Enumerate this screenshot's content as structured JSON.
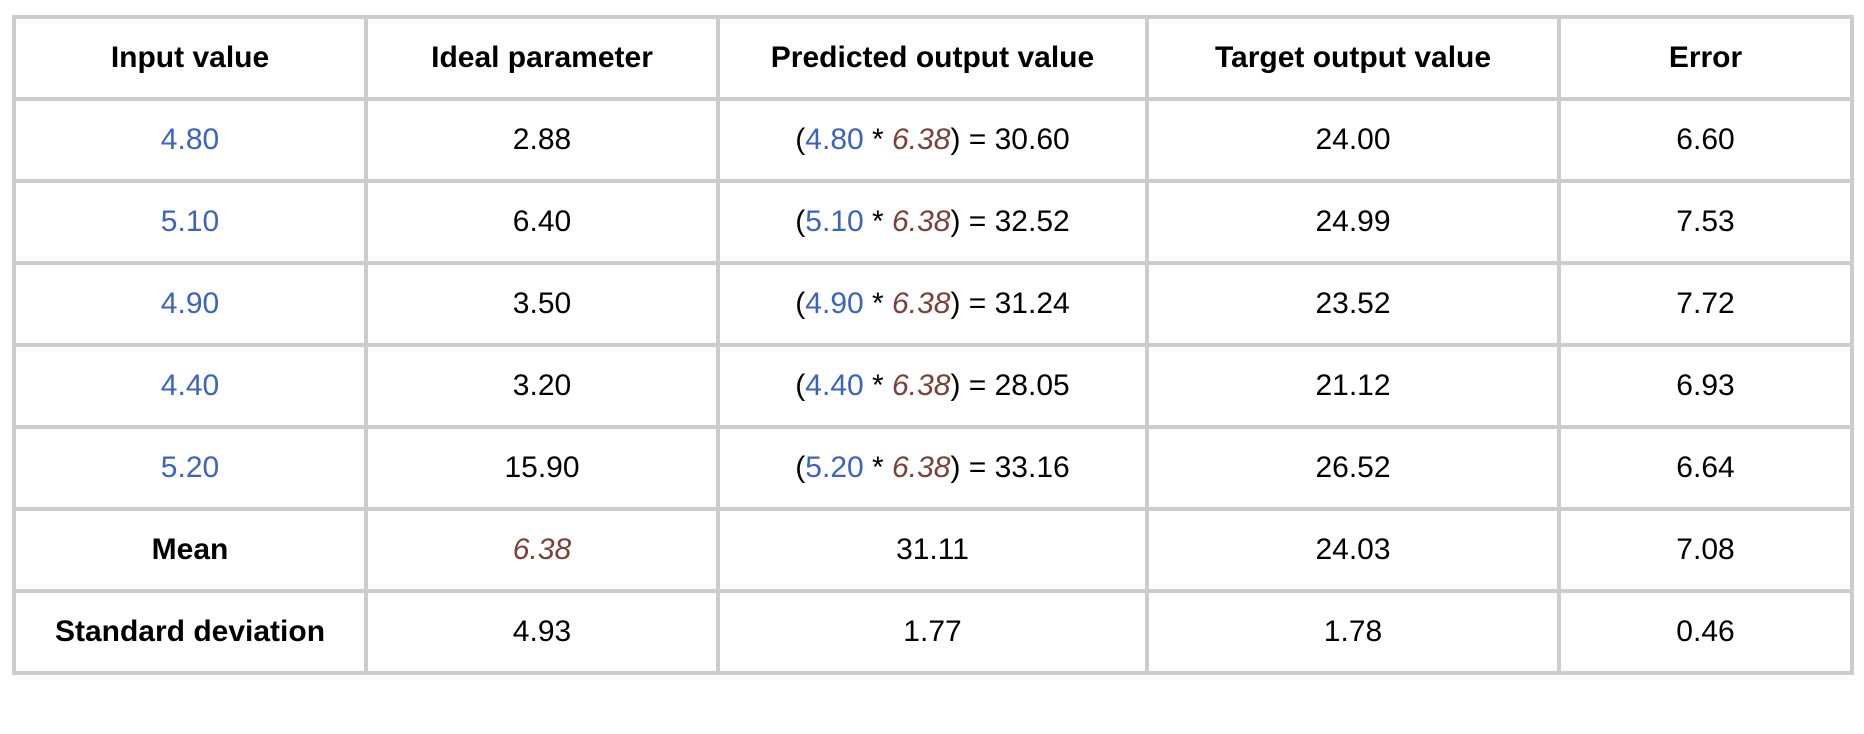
{
  "colors": {
    "input_blue": "#3c63c0",
    "parameter_brown": "#7a4138",
    "grid_border": "#cdcdcd"
  },
  "table": {
    "headers": [
      "Input value",
      "Ideal parameter",
      "Predicted output value",
      "Target output value",
      "Error"
    ],
    "rows": [
      {
        "input": "4.80",
        "ideal": "2.88",
        "predicted": {
          "input": "4.80",
          "param": "6.38",
          "result": "30.60"
        },
        "target": "24.00",
        "error": "6.60"
      },
      {
        "input": "5.10",
        "ideal": "6.40",
        "predicted": {
          "input": "5.10",
          "param": "6.38",
          "result": "32.52"
        },
        "target": "24.99",
        "error": "7.53"
      },
      {
        "input": "4.90",
        "ideal": "3.50",
        "predicted": {
          "input": "4.90",
          "param": "6.38",
          "result": "31.24"
        },
        "target": "23.52",
        "error": "7.72"
      },
      {
        "input": "4.40",
        "ideal": "3.20",
        "predicted": {
          "input": "4.40",
          "param": "6.38",
          "result": "28.05"
        },
        "target": "21.12",
        "error": "6.93"
      },
      {
        "input": "5.20",
        "ideal": "15.90",
        "predicted": {
          "input": "5.20",
          "param": "6.38",
          "result": "33.16"
        },
        "target": "26.52",
        "error": "6.64"
      }
    ],
    "mean": {
      "label": "Mean",
      "ideal": "6.38",
      "predicted": "31.11",
      "target": "24.03",
      "error": "7.08"
    },
    "std": {
      "label": "Standard deviation",
      "ideal": "4.93",
      "predicted": "1.77",
      "target": "1.78",
      "error": "0.46"
    }
  }
}
